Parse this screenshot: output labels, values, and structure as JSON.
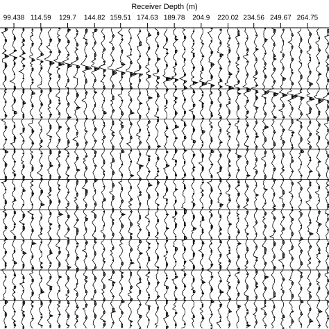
{
  "chart_data": {
    "type": "wiggle",
    "xlabel": "Receiver Depth (m)",
    "xlim": [
      91.6,
      276.9
    ],
    "xticks": [
      99.438,
      114.59,
      129.7,
      144.82,
      159.51,
      174.63,
      189.78,
      204.9,
      220.02,
      234.56,
      249.67,
      264.75
    ],
    "x": [
      94.39,
      99.44,
      104.48,
      109.53,
      114.57,
      119.62,
      124.66,
      129.71,
      134.75,
      139.8,
      144.84,
      149.88,
      154.93,
      159.97,
      165.02,
      170.06,
      175.1,
      180.15,
      185.19,
      190.24,
      195.28,
      200.33,
      205.37,
      210.41,
      215.46,
      220.5,
      225.55,
      230.59,
      235.64,
      240.68,
      245.72,
      250.77,
      255.81,
      260.86,
      265.9,
      270.95,
      275.99
    ],
    "color": "#000000"
  }
}
